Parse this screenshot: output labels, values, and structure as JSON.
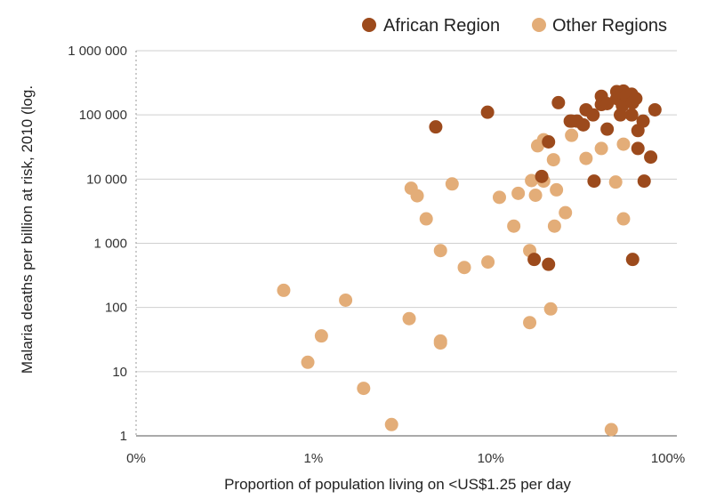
{
  "chart_data": {
    "type": "scatter",
    "title": "",
    "xlabel": "Proportion of population living on <US$1.25 per day",
    "ylabel": "Malaria deaths per billion at risk, 2010 (log.",
    "x_scale": "log",
    "y_scale": "log",
    "xlim": [
      0.1,
      100
    ],
    "ylim": [
      1,
      1000000
    ],
    "x_ticks": [
      {
        "value": 0.1,
        "label": "0%"
      },
      {
        "value": 1,
        "label": "1%"
      },
      {
        "value": 10,
        "label": "10%"
      },
      {
        "value": 100,
        "label": "100%"
      }
    ],
    "y_ticks": [
      {
        "value": 1,
        "label": "1"
      },
      {
        "value": 10,
        "label": "10"
      },
      {
        "value": 100,
        "label": "100"
      },
      {
        "value": 1000,
        "label": "1 000"
      },
      {
        "value": 10000,
        "label": "10 000"
      },
      {
        "value": 100000,
        "label": "100 000"
      },
      {
        "value": 1000000,
        "label": "1 000 000"
      }
    ],
    "grid": {
      "horizontal": true,
      "vertical": false
    },
    "legend_position": "top-right",
    "series": [
      {
        "name": "African Region",
        "color": "#9c4a1c",
        "points": [
          [
            4.9,
            65000
          ],
          [
            9.6,
            110000
          ],
          [
            19.4,
            11000
          ],
          [
            17.6,
            560
          ],
          [
            21.2,
            470
          ],
          [
            21.2,
            38000
          ],
          [
            24.1,
            155000
          ],
          [
            28.1,
            80000
          ],
          [
            28.6,
            80000
          ],
          [
            30.7,
            80000
          ],
          [
            33.3,
            70000
          ],
          [
            34.5,
            120000
          ],
          [
            37.8,
            100000
          ],
          [
            38.3,
            9300
          ],
          [
            42.1,
            145000
          ],
          [
            42.1,
            195000
          ],
          [
            45.4,
            60000
          ],
          [
            45.4,
            150000
          ],
          [
            51.4,
            180000
          ],
          [
            51.4,
            230000
          ],
          [
            53.9,
            100000
          ],
          [
            54.6,
            220000
          ],
          [
            55.3,
            140000
          ],
          [
            56.1,
            235000
          ],
          [
            58.3,
            200000
          ],
          [
            62.4,
            100000
          ],
          [
            62.4,
            210000
          ],
          [
            63.2,
            155000
          ],
          [
            63.2,
            560
          ],
          [
            65.9,
            180000
          ],
          [
            67.7,
            30000
          ],
          [
            67.7,
            57000
          ],
          [
            72.4,
            80000
          ],
          [
            73.4,
            9300
          ],
          [
            79.9,
            22000
          ],
          [
            84.4,
            120000
          ]
        ]
      },
      {
        "name": "Other Regions",
        "color": "#e3ad78",
        "points": [
          [
            0.68,
            185
          ],
          [
            0.93,
            14
          ],
          [
            1.11,
            36
          ],
          [
            1.52,
            130
          ],
          [
            1.92,
            5.5
          ],
          [
            2.76,
            1.5
          ],
          [
            3.47,
            67
          ],
          [
            3.56,
            7200
          ],
          [
            3.85,
            5500
          ],
          [
            4.33,
            2400
          ],
          [
            5.21,
            770
          ],
          [
            5.21,
            30
          ],
          [
            5.21,
            28
          ],
          [
            6.06,
            8400
          ],
          [
            7.1,
            420
          ],
          [
            9.65,
            510
          ],
          [
            11.2,
            5200
          ],
          [
            13.5,
            1850
          ],
          [
            14.3,
            6000
          ],
          [
            16.6,
            770
          ],
          [
            16.6,
            58
          ],
          [
            17.0,
            9500
          ],
          [
            17.9,
            5600
          ],
          [
            18.4,
            33000
          ],
          [
            19.9,
            9300
          ],
          [
            19.9,
            41000
          ],
          [
            21.8,
            95
          ],
          [
            22.6,
            20000
          ],
          [
            22.9,
            1850
          ],
          [
            23.5,
            6800
          ],
          [
            26.4,
            3000
          ],
          [
            28.6,
            48000
          ],
          [
            34.5,
            21000
          ],
          [
            42.1,
            30000
          ],
          [
            47.9,
            1.25
          ],
          [
            50.7,
            9000
          ],
          [
            56.1,
            35000
          ],
          [
            56.1,
            2400
          ]
        ]
      }
    ]
  }
}
